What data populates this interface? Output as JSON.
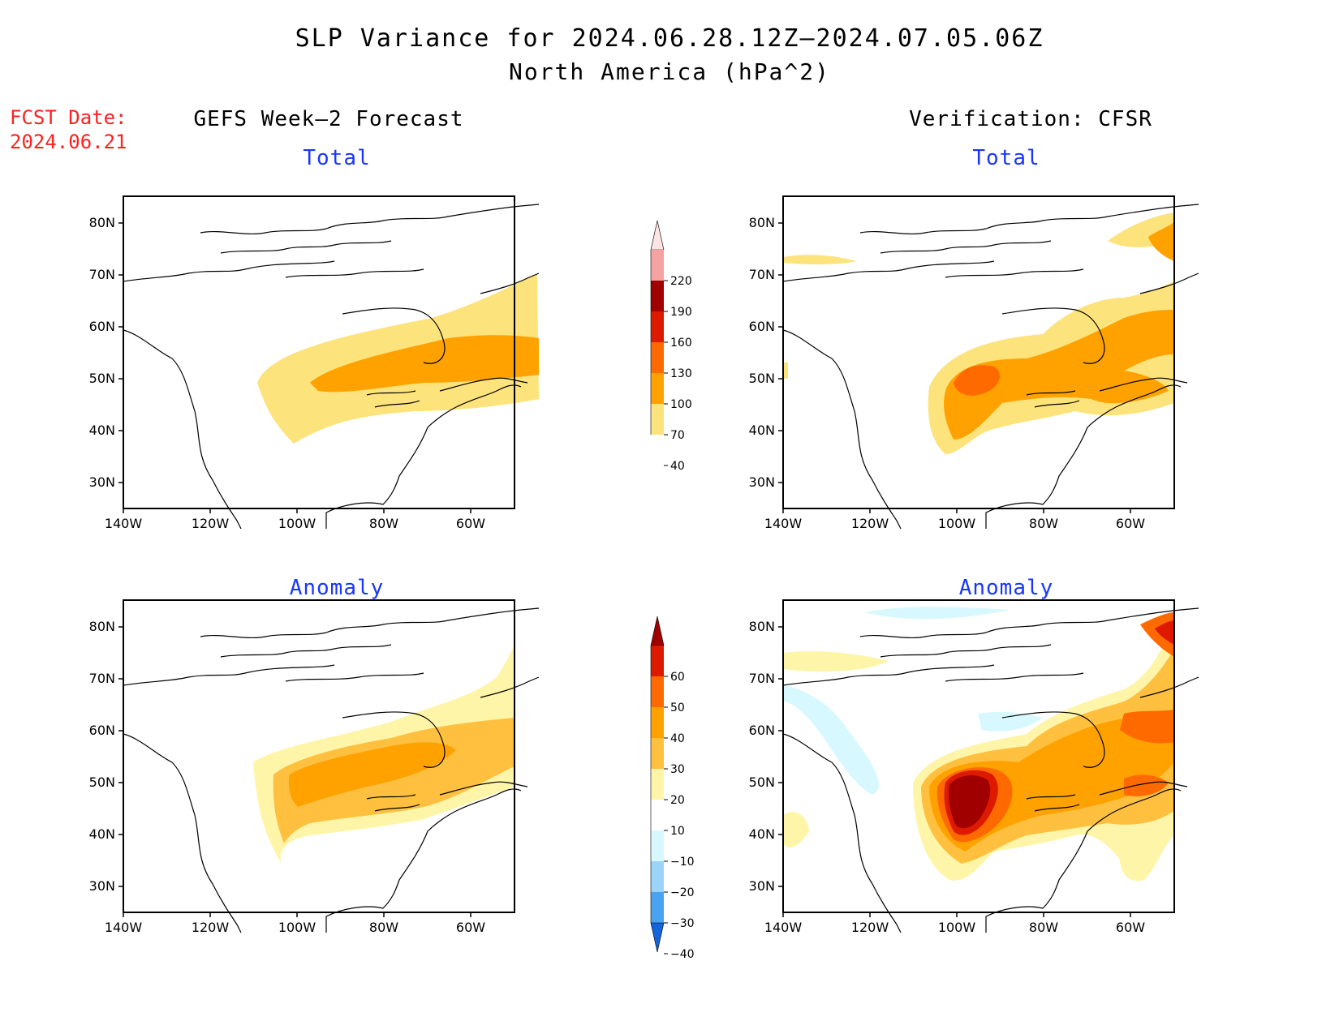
{
  "header": {
    "title": "SLP Variance for 2024.06.28.12Z–2024.07.05.06Z",
    "subtitle": "North America (hPa^2)"
  },
  "fcst": {
    "label": "FCST Date:",
    "date": "2024.06.21"
  },
  "columns": {
    "left": "GEFS Week–2 Forecast",
    "right": "Verification: CFSR"
  },
  "panels": [
    {
      "id": "fc-total",
      "label": "Total"
    },
    {
      "id": "ver-total",
      "label": "Total"
    },
    {
      "id": "fc-anom",
      "label": "Anomaly"
    },
    {
      "id": "ver-anom",
      "label": "Anomaly"
    }
  ],
  "axes": {
    "x_ticks": [
      "140W",
      "120W",
      "100W",
      "80W",
      "60W"
    ],
    "y_ticks": [
      "80N",
      "70N",
      "60N",
      "50N",
      "40N",
      "30N"
    ]
  },
  "colorbars": {
    "total": {
      "levels": [
        "220",
        "190",
        "160",
        "130",
        "100",
        "70",
        "40"
      ],
      "colors": [
        "#fde4e4",
        "#f4a2a2",
        "#a00000",
        "#dd1a00",
        "#ff6a00",
        "#ffa200",
        "#fde37c"
      ]
    },
    "anomaly": {
      "levels": [
        "60",
        "50",
        "40",
        "30",
        "20",
        "10",
        "−10",
        "−20",
        "−30",
        "−40"
      ],
      "colors": [
        "#a00000",
        "#dd1a00",
        "#ff6a00",
        "#ffa200",
        "#ffc040",
        "#fff5a8",
        "#ffffff",
        "#d8f8ff",
        "#9cd3f8",
        "#4aa3f0",
        "#1464dc"
      ]
    }
  },
  "colors": {
    "label_blue": "#1a35ff",
    "fcst_red": "#ff2020"
  }
}
